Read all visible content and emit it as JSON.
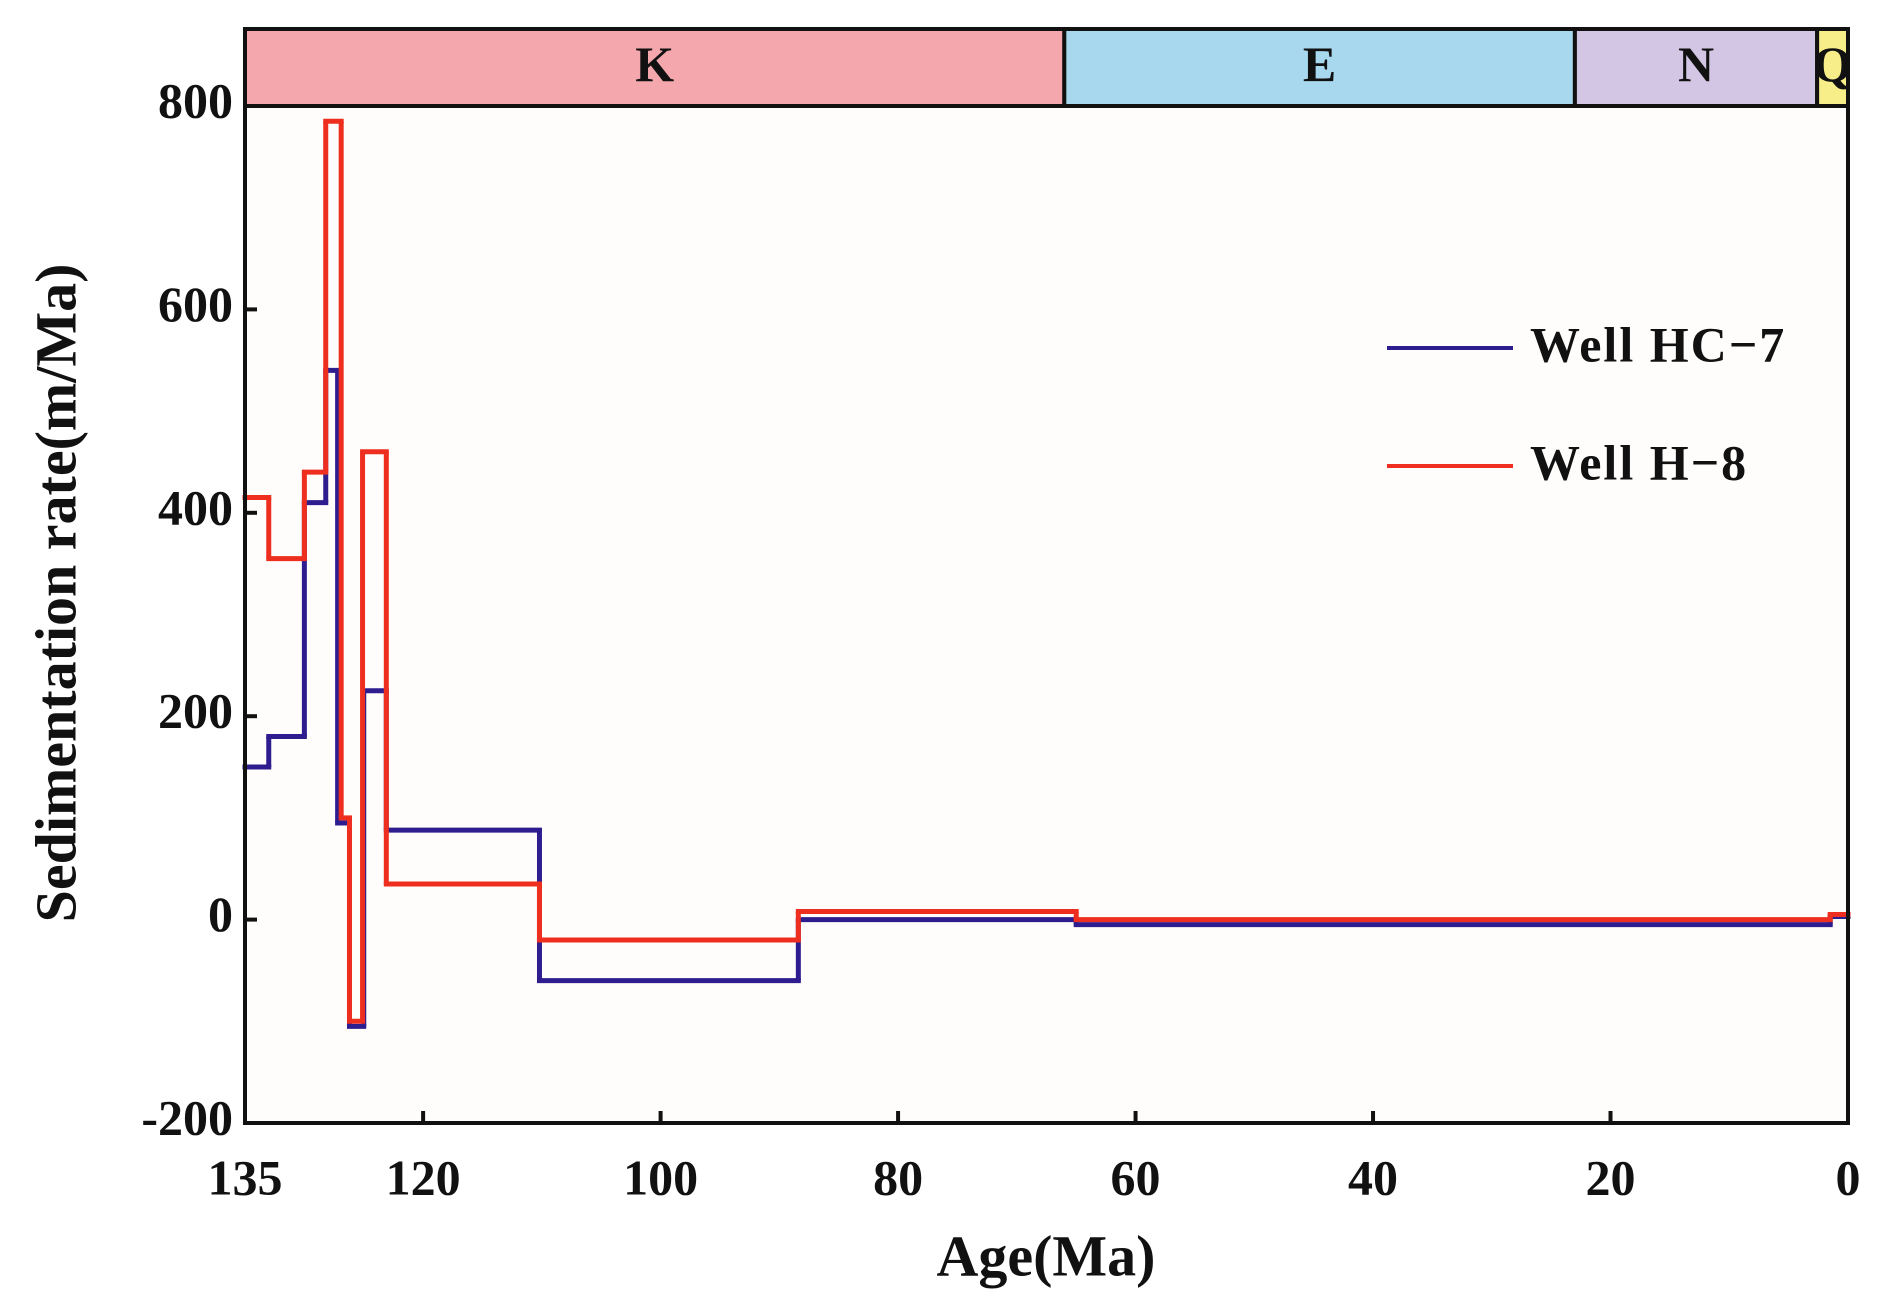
{
  "chart_data": {
    "type": "step",
    "xlabel": "Age(Ma)",
    "ylabel": "Sedimentation rate(m/Ma)",
    "xlim": [
      135,
      0
    ],
    "ylim": [
      -200,
      800
    ],
    "xticks": [
      135,
      120,
      100,
      80,
      60,
      40,
      20,
      0
    ],
    "yticks": [
      -200,
      0,
      200,
      400,
      600,
      800
    ],
    "legend": "upper right",
    "periods": [
      {
        "name": "K",
        "start": 135,
        "end": 66,
        "color": "#f4a8ad"
      },
      {
        "name": "E",
        "start": 66,
        "end": 23,
        "color": "#a8d8ee"
      },
      {
        "name": "N",
        "start": 23,
        "end": 2.6,
        "color": "#d2c6e4"
      },
      {
        "name": "Q",
        "start": 2.6,
        "end": 0,
        "color": "#f7ee8a"
      }
    ],
    "series": [
      {
        "name": "Well  HC−7",
        "color": "#2e1d8f",
        "bins": [
          135,
          133,
          130,
          128.2,
          127.2,
          126.2,
          125,
          123.1,
          110.2,
          88.4,
          65,
          1.5,
          0
        ],
        "values": [
          150,
          180,
          410,
          540,
          95,
          -105,
          225,
          88,
          -60,
          0,
          -5,
          3
        ]
      },
      {
        "name": "Well  H−8",
        "color": "#ee2f1f",
        "bins": [
          135,
          133,
          130,
          128.2,
          126.9,
          126.2,
          125.1,
          123.1,
          110.2,
          88.4,
          65,
          1.5,
          0
        ],
        "values": [
          415,
          355,
          440,
          785,
          100,
          -100,
          460,
          35,
          -20,
          8,
          0,
          5
        ]
      }
    ]
  }
}
